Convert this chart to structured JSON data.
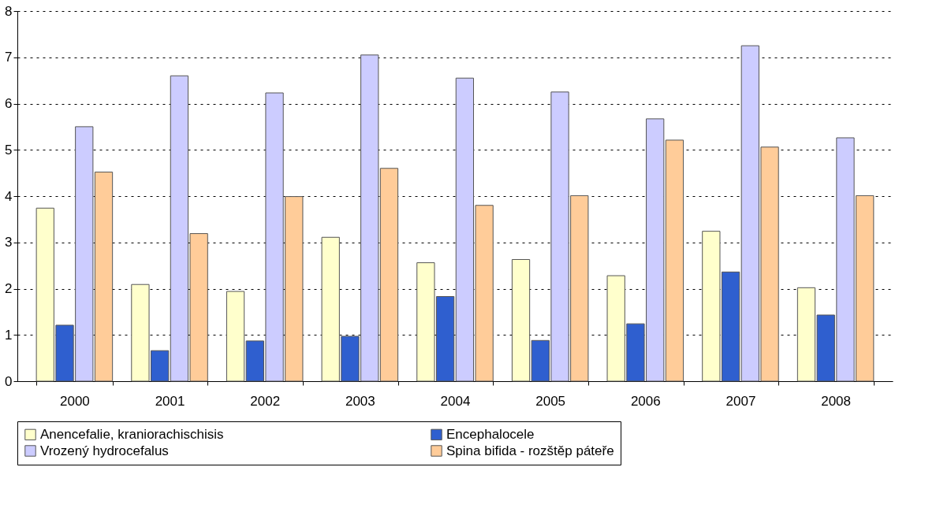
{
  "chart_data": {
    "type": "bar",
    "categories": [
      "2000",
      "2001",
      "2002",
      "2003",
      "2004",
      "2005",
      "2006",
      "2007",
      "2008"
    ],
    "series": [
      {
        "name": "Anencefalie, kraniorachischisis",
        "color": "#ffffcc",
        "values": [
          3.74,
          2.09,
          1.94,
          3.11,
          2.56,
          2.63,
          2.28,
          3.24,
          2.02
        ]
      },
      {
        "name": "Encephalocele",
        "color": "#2f5fcf",
        "values": [
          1.21,
          0.66,
          0.87,
          0.97,
          1.83,
          0.88,
          1.24,
          2.36,
          1.43
        ]
      },
      {
        "name": "Vrozený hydrocefalus",
        "color": "#ccccff",
        "values": [
          5.5,
          6.6,
          6.23,
          7.05,
          6.55,
          6.25,
          5.67,
          7.25,
          5.26
        ]
      },
      {
        "name": "Spina bifida - rozštěp páteře",
        "color": "#ffcc99",
        "values": [
          4.52,
          3.19,
          3.99,
          4.6,
          3.8,
          4.01,
          5.21,
          5.06,
          4.01
        ]
      }
    ],
    "ylim": [
      0,
      8
    ],
    "yticks": [
      0,
      1,
      2,
      3,
      4,
      5,
      6,
      7,
      8
    ],
    "grid": "y",
    "legend": "bottom"
  }
}
